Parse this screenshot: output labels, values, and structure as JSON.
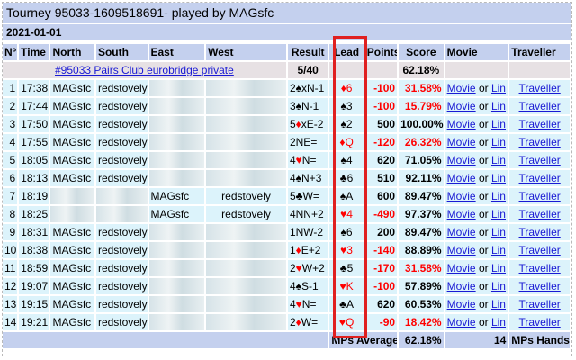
{
  "page": {
    "title": "Tourney 95033-1609518691- played by MAGsfc",
    "date": "2021-01-01"
  },
  "headers": {
    "no": "Nº",
    "time": "Time",
    "north": "North",
    "south": "South",
    "east": "East",
    "west": "West",
    "result": "Result",
    "lead": "Lead",
    "points": "Points",
    "score": "Score",
    "movie": "Movie",
    "traveller": "Traveller"
  },
  "event": {
    "link_text": "#95033 Pairs Club eurobridge private",
    "boards": "5/40",
    "score": "62.18%"
  },
  "rows": [
    {
      "no": "1",
      "time": "17:38",
      "north": "MAGsfc",
      "south": "redstovely",
      "east": "",
      "west": "",
      "result": "2♠xN-1",
      "lead": "♦6",
      "lead_red": true,
      "points": "-100",
      "score": "31.58%",
      "score_red": true
    },
    {
      "no": "2",
      "time": "17:44",
      "north": "MAGsfc",
      "south": "redstovely",
      "east": "",
      "west": "",
      "result": "3♠N-1",
      "lead": "♠3",
      "lead_red": false,
      "points": "-100",
      "score": "15.79%",
      "score_red": true
    },
    {
      "no": "3",
      "time": "17:50",
      "north": "MAGsfc",
      "south": "redstovely",
      "east": "",
      "west": "",
      "result": "5♦xE-2",
      "lead": "♠2",
      "lead_red": false,
      "points": "500",
      "score": "100.00%",
      "score_red": false
    },
    {
      "no": "4",
      "time": "17:55",
      "north": "MAGsfc",
      "south": "redstovely",
      "east": "",
      "west": "",
      "result": "2NE=",
      "lead": "♦Q",
      "lead_red": true,
      "points": "-120",
      "score": "26.32%",
      "score_red": true
    },
    {
      "no": "5",
      "time": "18:05",
      "north": "MAGsfc",
      "south": "redstovely",
      "east": "",
      "west": "",
      "result": "4♥N=",
      "lead": "♠4",
      "lead_red": false,
      "points": "620",
      "score": "71.05%",
      "score_red": false
    },
    {
      "no": "6",
      "time": "18:13",
      "north": "MAGsfc",
      "south": "redstovely",
      "east": "",
      "west": "",
      "result": "4♠N+3",
      "lead": "♣6",
      "lead_red": false,
      "points": "510",
      "score": "92.11%",
      "score_red": false
    },
    {
      "no": "7",
      "time": "18:19",
      "north": "",
      "south": "",
      "east": "MAGsfc",
      "west": "redstovely",
      "result": "5♣W=",
      "lead": "♠A",
      "lead_red": false,
      "points": "600",
      "score": "89.47%",
      "score_red": false
    },
    {
      "no": "8",
      "time": "18:25",
      "north": "",
      "south": "",
      "east": "MAGsfc",
      "west": "redstovely",
      "result": "4NN+2",
      "lead": "♥4",
      "lead_red": true,
      "points": "-490",
      "score": "97.37%",
      "score_red": false
    },
    {
      "no": "9",
      "time": "18:31",
      "north": "MAGsfc",
      "south": "redstovely",
      "east": "",
      "west": "",
      "result": "1NW-2",
      "lead": "♠6",
      "lead_red": false,
      "points": "200",
      "score": "89.47%",
      "score_red": false
    },
    {
      "no": "10",
      "time": "18:38",
      "north": "MAGsfc",
      "south": "redstovely",
      "east": "",
      "west": "",
      "result": "1♦E+2",
      "lead": "♥3",
      "lead_red": true,
      "points": "-140",
      "score": "88.89%",
      "score_red": false
    },
    {
      "no": "11",
      "time": "18:59",
      "north": "MAGsfc",
      "south": "redstovely",
      "east": "",
      "west": "",
      "result": "2♥W+2",
      "lead": "♣5",
      "lead_red": false,
      "points": "-170",
      "score": "31.58%",
      "score_red": true
    },
    {
      "no": "12",
      "time": "19:07",
      "north": "MAGsfc",
      "south": "redstovely",
      "east": "",
      "west": "",
      "result": "4♠S-1",
      "lead": "♥K",
      "lead_red": true,
      "points": "-100",
      "score": "57.89%",
      "score_red": false
    },
    {
      "no": "13",
      "time": "19:15",
      "north": "MAGsfc",
      "south": "redstovely",
      "east": "",
      "west": "",
      "result": "4♥N=",
      "lead": "♣A",
      "lead_red": false,
      "points": "620",
      "score": "60.53%",
      "score_red": false
    },
    {
      "no": "14",
      "time": "19:21",
      "north": "MAGsfc",
      "south": "redstovely",
      "east": "",
      "west": "",
      "result": "2♦W=",
      "lead": "♥Q",
      "lead_red": true,
      "points": "-90",
      "score": "18.42%",
      "score_red": true
    }
  ],
  "movie_label": "Movie",
  "or_label": "or",
  "lin_label": "Lin",
  "traveller_label": "Traveller",
  "footer": {
    "mps_average_label": "MPs Average",
    "mps_average": "62.18%",
    "hands_count": "14",
    "mps_hands_label": "MPs Hands"
  }
}
